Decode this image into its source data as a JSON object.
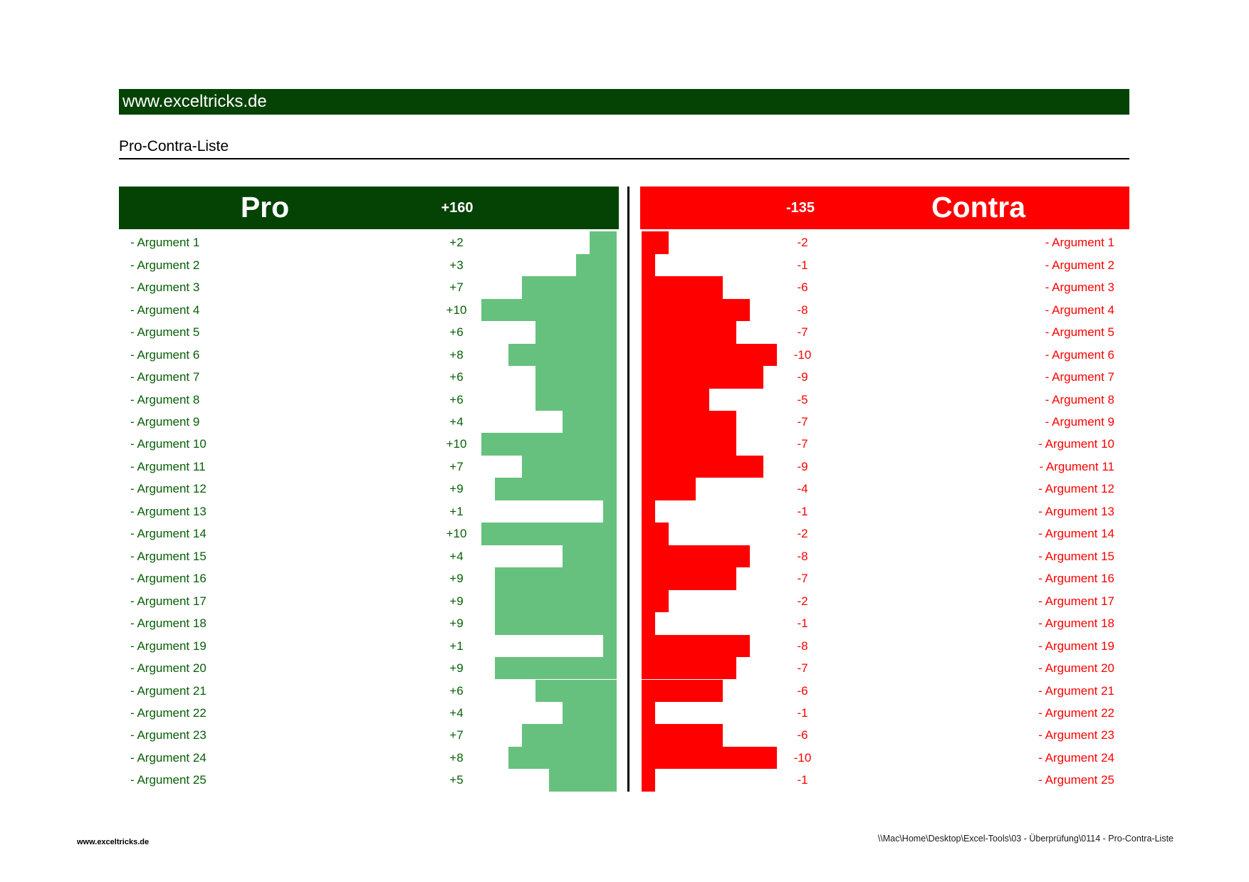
{
  "banner": {
    "text": "www.exceltricks.de"
  },
  "title": "Pro-Contra-Liste",
  "pro_header": {
    "title": "Pro",
    "total": "+160"
  },
  "contra_header": {
    "title": "Contra",
    "total": "-135"
  },
  "footer": {
    "left": "www.exceltricks.de",
    "right": "\\\\Mac\\Home\\Desktop\\Excel-Tools\\03 - Überprüfung\\0114 - Pro-Contra-Liste"
  },
  "colors": {
    "dark_green": "#054305",
    "bar_green": "#67c17e",
    "text_green": "#075e07",
    "bright_red": "#ff0000"
  },
  "rows": [
    {
      "label": "- Argument 1",
      "pro": "+2",
      "contra": "-2",
      "pro_value": 2,
      "contra_value": 2
    },
    {
      "label": "- Argument 2",
      "pro": "+3",
      "contra": "-1",
      "pro_value": 3,
      "contra_value": 1
    },
    {
      "label": "- Argument 3",
      "pro": "+7",
      "contra": "-6",
      "pro_value": 7,
      "contra_value": 6
    },
    {
      "label": "- Argument 4",
      "pro": "+10",
      "contra": "-8",
      "pro_value": 10,
      "contra_value": 8
    },
    {
      "label": "- Argument 5",
      "pro": "+6",
      "contra": "-7",
      "pro_value": 6,
      "contra_value": 7
    },
    {
      "label": "- Argument 6",
      "pro": "+8",
      "contra": "-10",
      "pro_value": 8,
      "contra_value": 10
    },
    {
      "label": "- Argument 7",
      "pro": "+6",
      "contra": "-9",
      "pro_value": 6,
      "contra_value": 9
    },
    {
      "label": "- Argument 8",
      "pro": "+6",
      "contra": "-5",
      "pro_value": 6,
      "contra_value": 5
    },
    {
      "label": "- Argument 9",
      "pro": "+4",
      "contra": "-7",
      "pro_value": 4,
      "contra_value": 7
    },
    {
      "label": "- Argument 10",
      "pro": "+10",
      "contra": "-7",
      "pro_value": 10,
      "contra_value": 7
    },
    {
      "label": "- Argument 11",
      "pro": "+7",
      "contra": "-9",
      "pro_value": 7,
      "contra_value": 9
    },
    {
      "label": "- Argument 12",
      "pro": "+9",
      "contra": "-4",
      "pro_value": 9,
      "contra_value": 4
    },
    {
      "label": "- Argument 13",
      "pro": "+1",
      "contra": "-1",
      "pro_value": 1,
      "contra_value": 1
    },
    {
      "label": "- Argument 14",
      "pro": "+10",
      "contra": "-2",
      "pro_value": 10,
      "contra_value": 2
    },
    {
      "label": "- Argument 15",
      "pro": "+4",
      "contra": "-8",
      "pro_value": 4,
      "contra_value": 8
    },
    {
      "label": "- Argument 16",
      "pro": "+9",
      "contra": "-7",
      "pro_value": 9,
      "contra_value": 7
    },
    {
      "label": "- Argument 17",
      "pro": "+9",
      "contra": "-2",
      "pro_value": 9,
      "contra_value": 2
    },
    {
      "label": "- Argument 18",
      "pro": "+9",
      "contra": "-1",
      "pro_value": 9,
      "contra_value": 1
    },
    {
      "label": "- Argument 19",
      "pro": "+1",
      "contra": "-8",
      "pro_value": 1,
      "contra_value": 8
    },
    {
      "label": "- Argument 20",
      "pro": "+9",
      "contra": "-7",
      "pro_value": 9,
      "contra_value": 7
    },
    {
      "label": "- Argument 21",
      "pro": "+6",
      "contra": "-6",
      "pro_value": 6,
      "contra_value": 6
    },
    {
      "label": "- Argument 22",
      "pro": "+4",
      "contra": "-1",
      "pro_value": 4,
      "contra_value": 1
    },
    {
      "label": "- Argument 23",
      "pro": "+7",
      "contra": "-6",
      "pro_value": 7,
      "contra_value": 6
    },
    {
      "label": "- Argument 24",
      "pro": "+8",
      "contra": "-10",
      "pro_value": 8,
      "contra_value": 10
    },
    {
      "label": "- Argument 25",
      "pro": "+5",
      "contra": "-1",
      "pro_value": 5,
      "contra_value": 1
    }
  ],
  "chart_data": {
    "type": "bar",
    "orientation": "horizontal-diverging",
    "title": "Pro-Contra-Liste",
    "categories": [
      "Argument 1",
      "Argument 2",
      "Argument 3",
      "Argument 4",
      "Argument 5",
      "Argument 6",
      "Argument 7",
      "Argument 8",
      "Argument 9",
      "Argument 10",
      "Argument 11",
      "Argument 12",
      "Argument 13",
      "Argument 14",
      "Argument 15",
      "Argument 16",
      "Argument 17",
      "Argument 18",
      "Argument 19",
      "Argument 20",
      "Argument 21",
      "Argument 22",
      "Argument 23",
      "Argument 24",
      "Argument 25"
    ],
    "series": [
      {
        "name": "Pro",
        "values": [
          2,
          3,
          7,
          10,
          6,
          8,
          6,
          6,
          4,
          10,
          7,
          9,
          1,
          10,
          4,
          9,
          9,
          9,
          1,
          9,
          6,
          4,
          7,
          8,
          5
        ]
      },
      {
        "name": "Contra",
        "values": [
          -2,
          -1,
          -6,
          -8,
          -7,
          -10,
          -9,
          -5,
          -7,
          -7,
          -9,
          -4,
          -1,
          -2,
          -8,
          -7,
          -2,
          -1,
          -8,
          -7,
          -6,
          -1,
          -6,
          -10,
          -1
        ]
      }
    ],
    "totals": {
      "pro": 160,
      "contra": -135
    },
    "value_range_per_row": [
      0,
      10
    ],
    "grid": false,
    "legend_position": "none"
  }
}
